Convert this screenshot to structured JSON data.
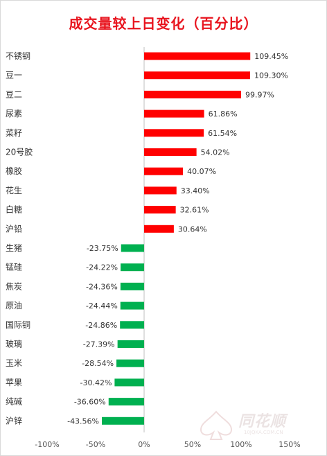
{
  "chart_data": {
    "type": "bar",
    "orientation": "horizontal",
    "title": "成交量较上日变化（百分比）",
    "xlabel": "",
    "ylabel": "",
    "categories": [
      "不锈钢",
      "豆一",
      "豆二",
      "尿素",
      "菜籽",
      "20号胶",
      "橡胶",
      "花生",
      "白糖",
      "沪铅",
      "生猪",
      "锰硅",
      "焦炭",
      "原油",
      "国际铜",
      "玻璃",
      "玉米",
      "苹果",
      "纯碱",
      "沪锌"
    ],
    "values": [
      109.45,
      109.3,
      99.97,
      61.86,
      61.54,
      54.02,
      40.07,
      33.4,
      32.61,
      30.64,
      -23.75,
      -24.22,
      -24.36,
      -24.44,
      -24.86,
      -27.39,
      -28.54,
      -30.42,
      -36.6,
      -43.56
    ],
    "value_labels": [
      "109.45%",
      "109.30%",
      "99.97%",
      "61.86%",
      "61.54%",
      "54.02%",
      "40.07%",
      "33.40%",
      "32.61%",
      "30.64%",
      "-23.75%",
      "-24.22%",
      "-24.36%",
      "-24.44%",
      "-24.86%",
      "-27.39%",
      "-28.54%",
      "-30.42%",
      "-36.60%",
      "-43.56%"
    ],
    "xlim": [
      -100,
      150
    ],
    "xticks": [
      -100,
      -50,
      0,
      50,
      100,
      150
    ],
    "xtick_labels": [
      "-100%",
      "-50%",
      "0%",
      "50%",
      "100%",
      "150%"
    ],
    "grid": false,
    "legend": "none",
    "colors": {
      "positive": "#ff0000",
      "negative": "#00b050",
      "title": "#e8141e"
    }
  },
  "watermark": {
    "brand": "同花顺",
    "url": "10JQKA.COM.CN"
  }
}
